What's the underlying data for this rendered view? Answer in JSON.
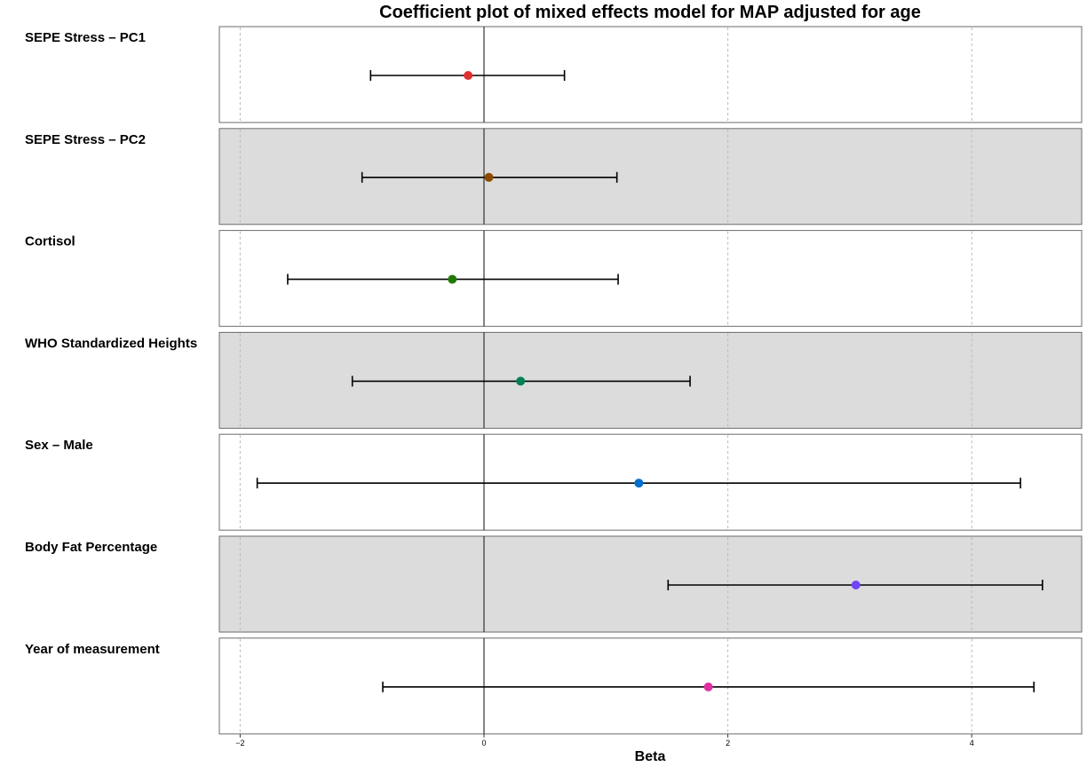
{
  "chart_data": {
    "type": "coefficient-plot",
    "title": "Coefficient plot of mixed effects model for MAP adjusted for age",
    "xlabel": "Beta",
    "ylabel": "",
    "xlim": [
      -2.2,
      4.9
    ],
    "xticks": [
      -2,
      0,
      2,
      4
    ],
    "reference_line": 0,
    "grid": "vertical dotted",
    "row_colors": [
      "#ffffff",
      "#dcdcdc"
    ],
    "series": [
      {
        "label": "SEPE Stress – PC1",
        "estimate": -0.13,
        "lower": -0.93,
        "upper": 0.66,
        "color": "#e03030"
      },
      {
        "label": "SEPE Stress – PC2",
        "estimate": 0.04,
        "lower": -1.0,
        "upper": 1.09,
        "color": "#8b4a00"
      },
      {
        "label": "Cortisol",
        "estimate": -0.26,
        "lower": -1.61,
        "upper": 1.1,
        "color": "#217a00"
      },
      {
        "label": "WHO Standardized Heights",
        "estimate": 0.3,
        "lower": -1.08,
        "upper": 1.69,
        "color": "#008055"
      },
      {
        "label": "Sex – Male",
        "estimate": 1.27,
        "lower": -1.86,
        "upper": 4.4,
        "color": "#0070d0"
      },
      {
        "label": "Body Fat Percentage",
        "estimate": 3.05,
        "lower": 1.51,
        "upper": 4.58,
        "color": "#6f45f5"
      },
      {
        "label": "Year of measurement",
        "estimate": 1.84,
        "lower": -0.83,
        "upper": 4.51,
        "color": "#e030a0"
      }
    ]
  }
}
